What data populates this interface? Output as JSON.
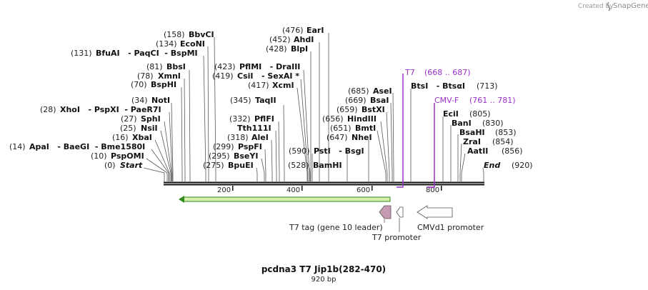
{
  "credit": {
    "prefix": "Created by",
    "brand": "SnapGene"
  },
  "title": "pcdna3 T7 Jip1b(282-470)",
  "length_label": "920 bp",
  "axis": {
    "ticks": [
      "200",
      "400",
      "600",
      "800"
    ]
  },
  "sites": [
    {
      "num": "(0)",
      "name": "Start",
      "italic": true
    },
    {
      "num": "(10)",
      "name": "PspOMI"
    },
    {
      "num": "(14)",
      "name": "ApaI   - BaeGI  - Bme1580I"
    },
    {
      "num": "(16)",
      "name": "XbaI"
    },
    {
      "num": "(25)",
      "name": "NsiI"
    },
    {
      "num": "(27)",
      "name": "SphI"
    },
    {
      "num": "(28)",
      "name": "XhoI   - PspXI  - PaeR7I"
    },
    {
      "num": "(34)",
      "name": "NotI"
    },
    {
      "num": "(70)",
      "name": "BspHI"
    },
    {
      "num": "(78)",
      "name": "XmnI"
    },
    {
      "num": "(81)",
      "name": "BbsI"
    },
    {
      "num": "(131)",
      "name": "BfuAI   - PaqCI  - BspMI"
    },
    {
      "num": "(134)",
      "name": "EcoNI"
    },
    {
      "num": "(158)",
      "name": "BbvCI"
    },
    {
      "num": "(275)",
      "name": "BpuEI"
    },
    {
      "num": "(295)",
      "name": "BseYI"
    },
    {
      "num": "(299)",
      "name": "PspFI"
    },
    {
      "num": "(318)",
      "name": "AleI"
    },
    {
      "num": "",
      "name": "Tth111I"
    },
    {
      "num": "(332)",
      "name": "PflFI"
    },
    {
      "num": "(345)",
      "name": "TaqII"
    },
    {
      "num": "(417)",
      "name": "XcmI"
    },
    {
      "num": "(419)",
      "name": "CsiI   - SexAI *"
    },
    {
      "num": "(423)",
      "name": "PflMI   - DraIII"
    },
    {
      "num": "(428)",
      "name": "BlpI"
    },
    {
      "num": "(452)",
      "name": "AhdI"
    },
    {
      "num": "(476)",
      "name": "EarI"
    },
    {
      "num": "(528)",
      "name": "BamHI"
    },
    {
      "num": "(590)",
      "name": "PstI   - BsgI"
    },
    {
      "num": "(647)",
      "name": "NheI"
    },
    {
      "num": "(651)",
      "name": "BmtI"
    },
    {
      "num": "(656)",
      "name": "HindIII"
    },
    {
      "num": "(659)",
      "name": "BstXI"
    },
    {
      "num": "(669)",
      "name": "BsaI"
    },
    {
      "num": "(685)",
      "name": "AseI"
    },
    {
      "name": "BtsI   - BtsαI",
      "num": "(713)"
    },
    {
      "name": "EciI",
      "num": "(805)"
    },
    {
      "name": "BanI",
      "num": "(830)"
    },
    {
      "name": "BsaHI",
      "num": "(853)"
    },
    {
      "name": "ZraI",
      "num": "(854)"
    },
    {
      "name": "AatII",
      "num": "(856)"
    },
    {
      "name": "End",
      "num": "(920)",
      "italic": true
    }
  ],
  "primers": [
    {
      "name": "T7",
      "range": "(668 .. 687)"
    },
    {
      "name": "CMV-F",
      "range": "(761 .. 781)"
    }
  ],
  "features": [
    {
      "label": "T7 tag (gene 10 leader)"
    },
    {
      "label": "T7 promoter"
    },
    {
      "label": "CMVd1 promoter"
    }
  ],
  "colors": {
    "primer": "#9b30c8",
    "orf_fill": "#d7f0b0",
    "orf_stroke": "#2e8a1a",
    "tag_fill": "#c79ab2"
  }
}
